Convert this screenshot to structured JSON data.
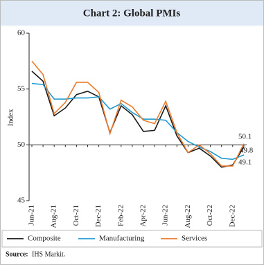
{
  "chart_data": {
    "type": "line",
    "title": "Chart 2: Global PMIs",
    "y_label": "Index",
    "categories": [
      "Jun-21",
      null,
      "Aug-21",
      null,
      "Oct-21",
      null,
      "Dec-21",
      null,
      "Feb-22",
      null,
      "Apr-22",
      null,
      "Jun-22",
      null,
      "Aug-22",
      null,
      "Oct-22",
      null,
      "Dec-22",
      null
    ],
    "series": [
      {
        "name": "Composite",
        "color": "#1a1a1a",
        "values": [
          56.6,
          55.7,
          52.6,
          53.3,
          54.5,
          54.8,
          54.3,
          51.1,
          53.5,
          52.7,
          51.2,
          51.3,
          53.5,
          50.8,
          49.3,
          49.7,
          49.0,
          48.0,
          48.2,
          49.8
        ]
      },
      {
        "name": "Manufacturing",
        "color": "#1f9bd1",
        "values": [
          55.5,
          55.4,
          54.1,
          54.1,
          54.2,
          54.2,
          54.3,
          53.2,
          53.7,
          52.9,
          52.3,
          52.3,
          52.2,
          51.1,
          50.3,
          49.8,
          49.4,
          48.8,
          48.7,
          49.1
        ]
      },
      {
        "name": "Services",
        "color": "#ec7a2c",
        "values": [
          57.5,
          56.3,
          52.8,
          53.8,
          55.6,
          55.6,
          54.7,
          51.0,
          54.0,
          53.4,
          52.2,
          51.9,
          53.9,
          51.1,
          49.3,
          50.0,
          49.2,
          48.1,
          48.1,
          50.1
        ]
      }
    ],
    "ylim": [
      45,
      60
    ],
    "yticks": [
      45,
      50,
      55,
      60
    ],
    "x_axis_at": 50,
    "source_label": "Source:",
    "source": "IHS Markit."
  }
}
